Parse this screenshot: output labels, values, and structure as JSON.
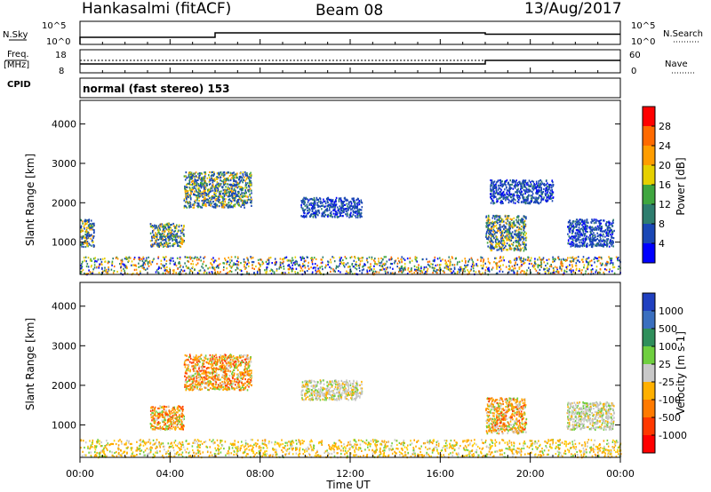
{
  "header": {
    "station": "Hankasalmi (fitACF)",
    "beam": "Beam 08",
    "date": "13/Aug/2017"
  },
  "top_panels": {
    "nsky_label": "N.Sky",
    "nsearch_label": "N.Search",
    "noise_ticks_left": [
      "10^5",
      "10^0"
    ],
    "noise_ticks_right": [
      "10^5",
      "10^0"
    ],
    "freq_label_1": "Freq.",
    "freq_label_2": "[MHz]",
    "freq_ticks": [
      "18",
      "8"
    ],
    "nave_label": "Nave",
    "nave_ticks": [
      "60",
      "0"
    ],
    "cpid_label": "CPID",
    "cpid_text": "normal (fast stereo) 153"
  },
  "chart_data": [
    {
      "type": "heatmap",
      "name": "power",
      "ylabel": "Slant Range [km]",
      "ylim": [
        180,
        4600
      ],
      "xlim_hours": [
        0,
        24
      ],
      "y_ticks": [
        "4000",
        "3000",
        "2000",
        "1000"
      ],
      "colorbar_label": "Power [dB]",
      "colorbar_ticks": [
        "28",
        "24",
        "20",
        "16",
        "12",
        "8",
        "4"
      ],
      "colorbar_colors": [
        "#ff0000",
        "#ff6a00",
        "#ff9d00",
        "#e6d000",
        "#3fa63f",
        "#2e7d6e",
        "#1a47b5",
        "#0000ff"
      ],
      "echo_regions": [
        {
          "x": [
            0.0,
            24.0
          ],
          "y": [
            200,
            650
          ],
          "level": "mixed-low"
        },
        {
          "x": [
            0.0,
            0.6
          ],
          "y": [
            900,
            1600
          ],
          "level": "mixed"
        },
        {
          "x": [
            3.1,
            4.6
          ],
          "y": [
            900,
            1500
          ],
          "level": "mixed"
        },
        {
          "x": [
            4.6,
            7.6
          ],
          "y": [
            1900,
            2800
          ],
          "level": "mixed"
        },
        {
          "x": [
            9.8,
            12.5
          ],
          "y": [
            1650,
            2150
          ],
          "level": "low"
        },
        {
          "x": [
            18.0,
            19.8
          ],
          "y": [
            800,
            1700
          ],
          "level": "mixed"
        },
        {
          "x": [
            18.2,
            21.0
          ],
          "y": [
            2000,
            2600
          ],
          "level": "low"
        },
        {
          "x": [
            21.6,
            23.7
          ],
          "y": [
            900,
            1600
          ],
          "level": "low"
        }
      ]
    },
    {
      "type": "heatmap",
      "name": "velocity",
      "ylabel": "Slant Range [km]",
      "ylim": [
        180,
        4600
      ],
      "xlim_hours": [
        0,
        24
      ],
      "y_ticks": [
        "4000",
        "3000",
        "2000",
        "1000"
      ],
      "colorbar_label": "Velocity [m s-1]",
      "colorbar_ticks": [
        "1000",
        "500",
        "100",
        "25",
        "-25",
        "-100",
        "-500",
        "-1000"
      ],
      "colorbar_colors": [
        "#2040c0",
        "#3a6fbf",
        "#2f8f5b",
        "#6fcf3f",
        "#c8c8c8",
        "#ffb000",
        "#ff7a00",
        "#ff3800",
        "#ff0000"
      ],
      "echo_regions": [
        {
          "x": [
            0.0,
            24.0
          ],
          "y": [
            200,
            650
          ],
          "level": "orange-green"
        },
        {
          "x": [
            3.1,
            4.6
          ],
          "y": [
            900,
            1500
          ],
          "level": "orange"
        },
        {
          "x": [
            4.6,
            7.6
          ],
          "y": [
            1900,
            2800
          ],
          "level": "orange"
        },
        {
          "x": [
            9.8,
            12.5
          ],
          "y": [
            1650,
            2150
          ],
          "level": "grey"
        },
        {
          "x": [
            18.0,
            19.8
          ],
          "y": [
            800,
            1700
          ],
          "level": "orange"
        },
        {
          "x": [
            21.6,
            23.7
          ],
          "y": [
            900,
            1600
          ],
          "level": "grey"
        }
      ]
    }
  ],
  "x_axis": {
    "tick_labels": [
      "00:00",
      "04:00",
      "08:00",
      "12:00",
      "16:00",
      "20:00",
      "00:00"
    ],
    "label": "Time UT"
  }
}
